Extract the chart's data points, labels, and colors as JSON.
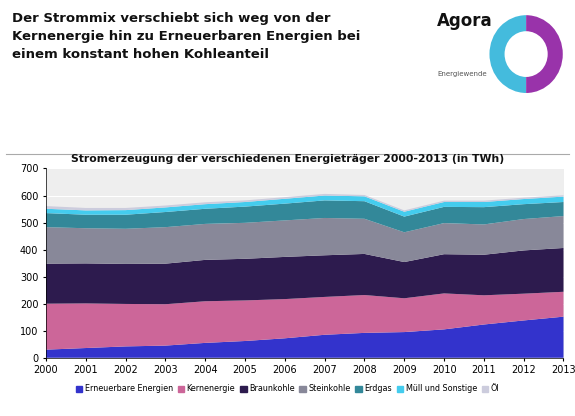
{
  "title_main": "Der Strommix verschiebt sich weg von der\nKernenergie hin zu Erneuerbaren Energien bei\neinem konstant hohen Kohleanteil",
  "subtitle": "Stromerzeugung der verschiedenen Energieträger 2000-2013 (in TWh)",
  "years": [
    2000,
    2001,
    2002,
    2003,
    2004,
    2005,
    2006,
    2007,
    2008,
    2009,
    2010,
    2011,
    2012,
    2013
  ],
  "series": {
    "Erneuerbare Energien": [
      30,
      36,
      42,
      45,
      55,
      62,
      72,
      85,
      92,
      95,
      105,
      123,
      138,
      152
    ],
    "Kernenergie": [
      170,
      165,
      157,
      153,
      154,
      150,
      145,
      140,
      140,
      125,
      133,
      108,
      99,
      92
    ],
    "Braunkohle": [
      148,
      148,
      148,
      150,
      153,
      154,
      156,
      154,
      152,
      134,
      145,
      150,
      160,
      162
    ],
    "Steinkohle": [
      135,
      130,
      130,
      135,
      133,
      133,
      135,
      138,
      130,
      110,
      115,
      112,
      116,
      118
    ],
    "Erdgas": [
      52,
      50,
      52,
      56,
      56,
      60,
      62,
      65,
      65,
      58,
      60,
      64,
      55,
      52
    ],
    "Müll und Sonstige": [
      16,
      16,
      17,
      17,
      17,
      17,
      18,
      18,
      18,
      18,
      18,
      19,
      19,
      20
    ],
    "Öl": [
      10,
      9,
      8,
      7,
      7,
      6,
      6,
      6,
      5,
      5,
      5,
      5,
      5,
      5
    ]
  },
  "colors": {
    "Erneuerbare Energien": "#3333cc",
    "Kernenergie": "#cc6699",
    "Braunkohle": "#2d1b4e",
    "Steinkohle": "#888899",
    "Erdgas": "#338899",
    "Müll und Sonstige": "#44ccee",
    "Öl": "#ccccdd"
  },
  "ylim": [
    0,
    700
  ],
  "yticks": [
    0,
    100,
    200,
    300,
    400,
    500,
    600,
    700
  ],
  "plot_bg": "#eeeeee",
  "agora_text": "Agora",
  "agora_sub": "Energiewende"
}
